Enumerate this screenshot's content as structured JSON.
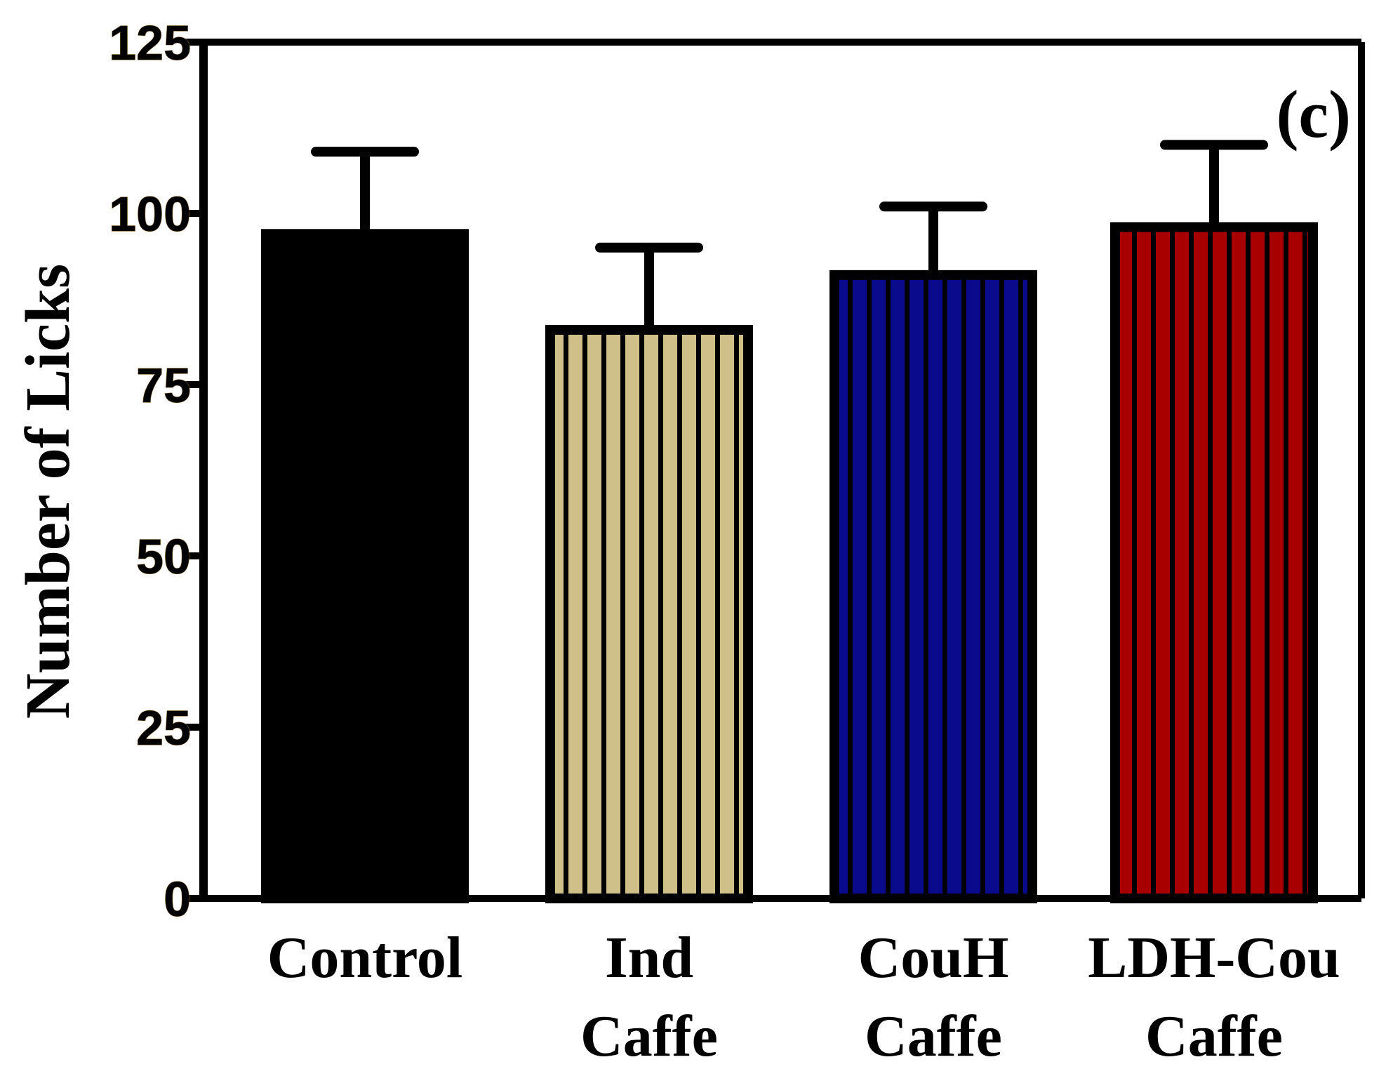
{
  "chart_data": {
    "type": "bar",
    "panel_label": "(c)",
    "ylabel": "Number of  Licks",
    "xlabel": "",
    "ylim": [
      0,
      125
    ],
    "yticks": [
      0,
      25,
      50,
      75,
      100,
      125
    ],
    "ytick_labels": [
      "0",
      "25",
      "50",
      "75",
      "100",
      "125"
    ],
    "categories": [
      {
        "key": "control",
        "lines": [
          "Control"
        ]
      },
      {
        "key": "ind-caffe",
        "lines": [
          "Ind",
          "Caffe"
        ]
      },
      {
        "key": "couh-caffe",
        "lines": [
          "CouH",
          "Caffe"
        ]
      },
      {
        "key": "ldh-cou-caffe",
        "lines": [
          "LDH-Cou",
          "Caffe"
        ]
      }
    ],
    "values": [
      97,
      83,
      91,
      98
    ],
    "error_upper": [
      12,
      12,
      10,
      12
    ],
    "fills": [
      "#000000",
      "#cfc08a",
      "#0a0a8c",
      "#a80000"
    ],
    "patterns": [
      "solid",
      "striped",
      "striped",
      "striped"
    ],
    "grid": false
  }
}
